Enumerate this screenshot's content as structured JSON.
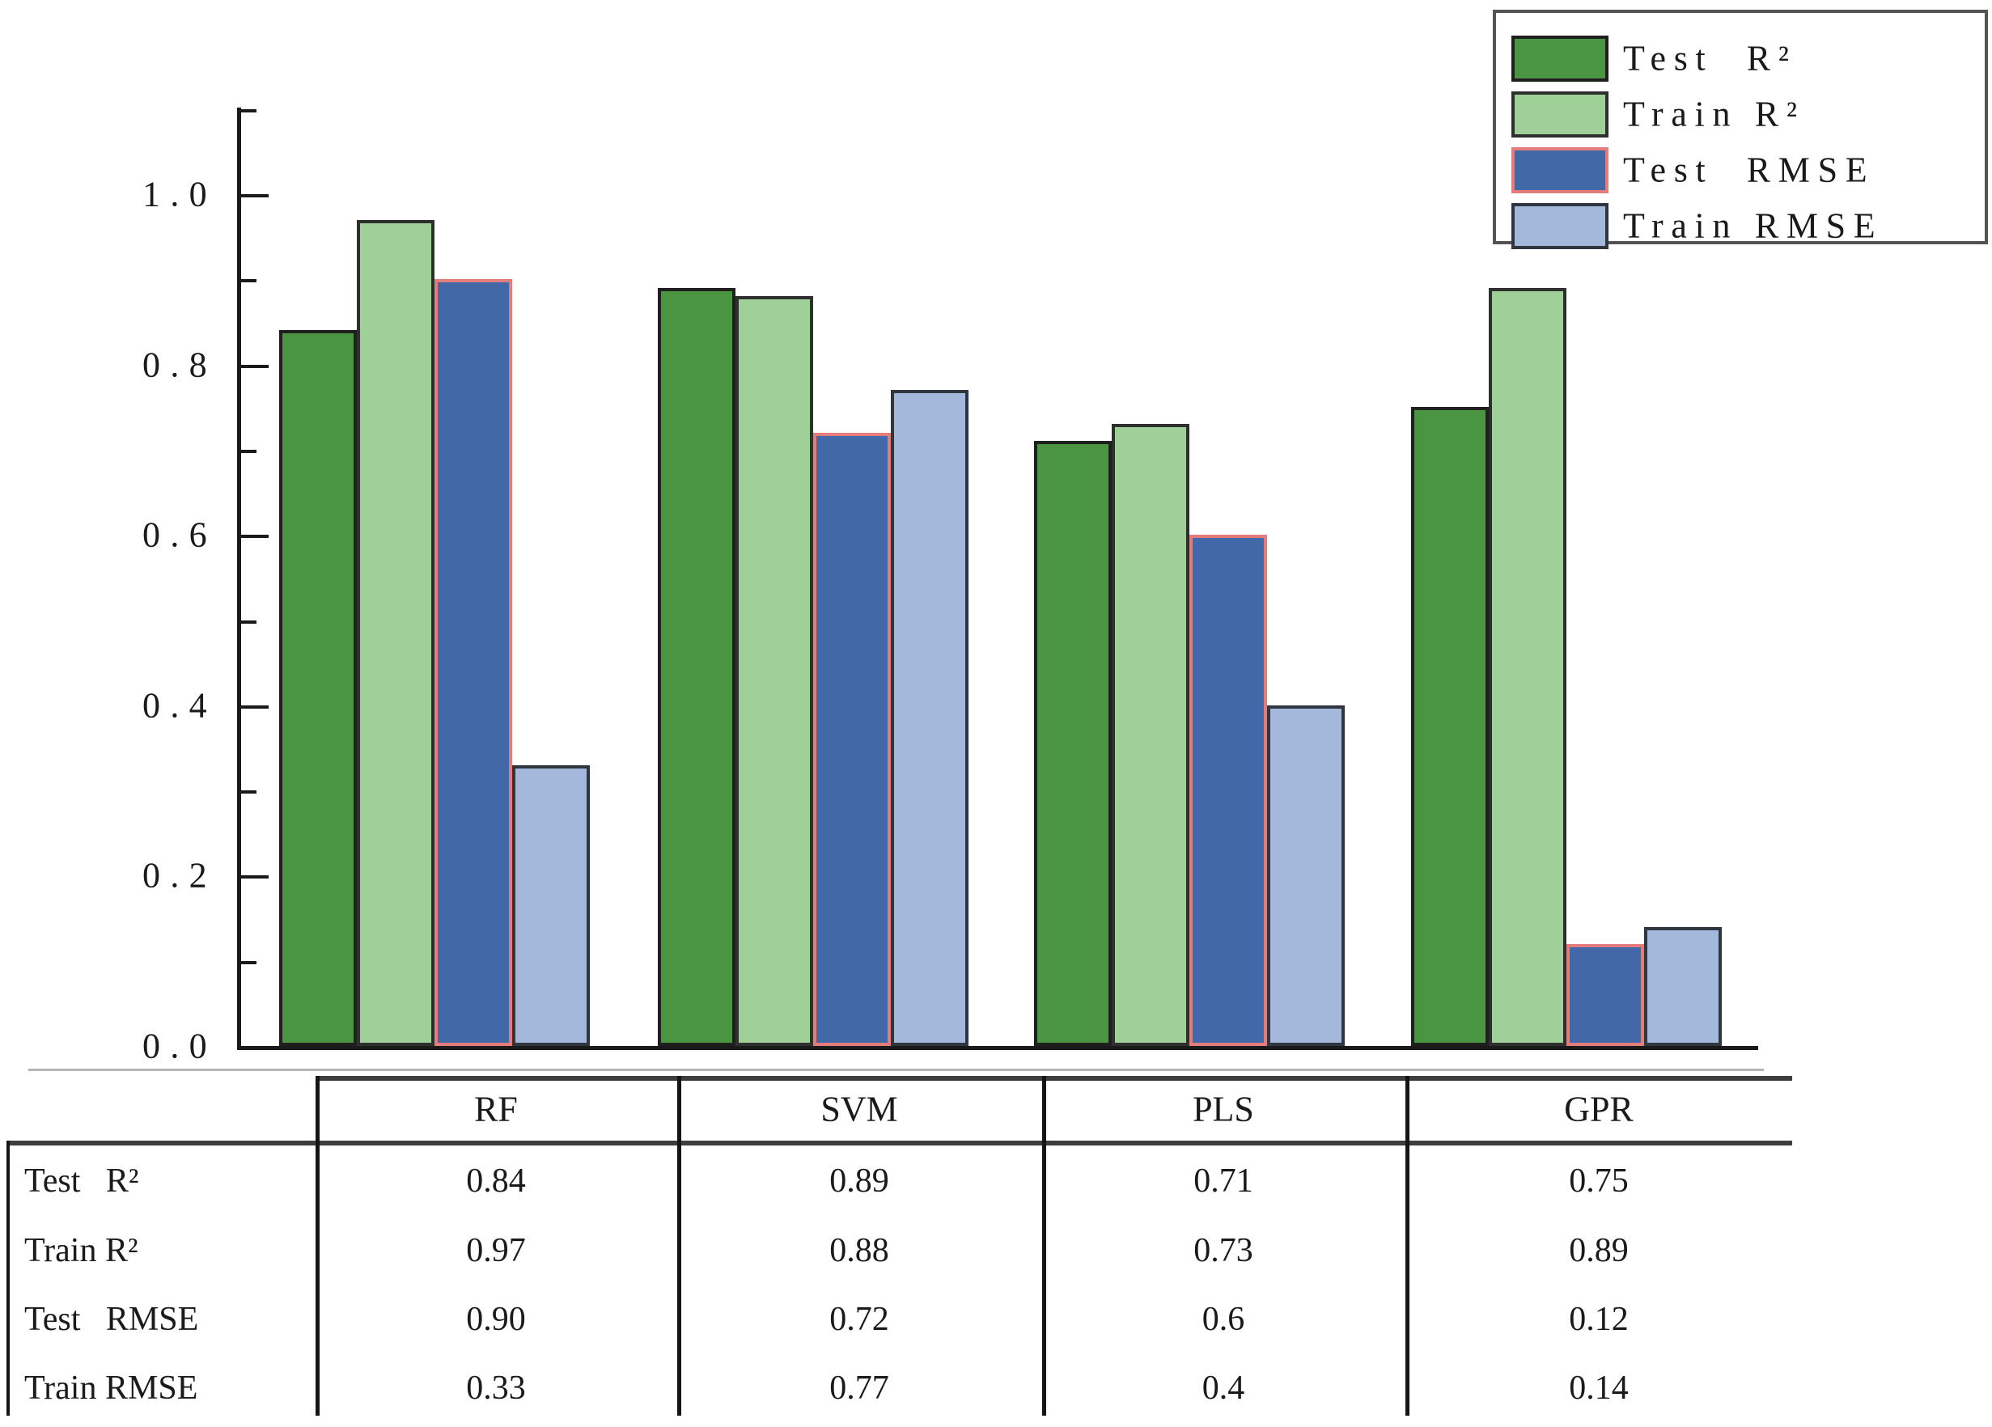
{
  "legend": {
    "items": [
      {
        "label": "Test  R²",
        "color": "#4a9542",
        "border": "#1f1f1f"
      },
      {
        "label": "Train R²",
        "color": "#9fd097",
        "border": "#2f2f2f"
      },
      {
        "label": "Test  RMSE",
        "color": "#4268a8",
        "border": "#e57c7c"
      },
      {
        "label": "Train RMSE",
        "color": "#a4b8dc",
        "border": "#2f3640"
      }
    ]
  },
  "chart_data": {
    "type": "bar",
    "categories": [
      "RF",
      "SVM",
      "PLS",
      "GPR"
    ],
    "series": [
      {
        "name": "Test R²",
        "color": "#4a9542",
        "border": "#1f1f1f",
        "values": [
          0.84,
          0.89,
          0.71,
          0.75
        ]
      },
      {
        "name": "Train R²",
        "color": "#9fd097",
        "border": "#2f2f2f",
        "values": [
          0.97,
          0.88,
          0.73,
          0.89
        ]
      },
      {
        "name": "Test RMSE",
        "color": "#4268a8",
        "border": "#e57c7c",
        "values": [
          0.9,
          0.72,
          0.6,
          0.12
        ]
      },
      {
        "name": "Train RMSE",
        "color": "#a4b8dc",
        "border": "#2f3640",
        "values": [
          0.33,
          0.77,
          0.4,
          0.14
        ]
      }
    ],
    "title": "",
    "xlabel": "",
    "ylabel": "",
    "ylim": [
      0,
      1.1
    ],
    "yticks_major": [
      0.0,
      0.2,
      0.4,
      0.6,
      0.8,
      1.0
    ],
    "ytick_labels": [
      "0.0",
      "0.2",
      "0.4",
      "0.6",
      "0.8",
      "1.0"
    ],
    "yticks_minor": [
      0.1,
      0.3,
      0.5,
      0.7,
      0.9,
      1.1
    ],
    "grid": false,
    "legend_position": "top-right"
  },
  "table": {
    "columns": [
      "RF",
      "SVM",
      "PLS",
      "GPR"
    ],
    "rows": [
      {
        "label": "Test   R²",
        "values": [
          "0.84",
          "0.89",
          "0.71",
          "0.75"
        ]
      },
      {
        "label": "Train R²",
        "values": [
          "0.97",
          "0.88",
          "0.73",
          "0.89"
        ]
      },
      {
        "label": "Test   RMSE",
        "values": [
          "0.90",
          "0.72",
          "0.6",
          "0.12"
        ]
      },
      {
        "label": "Train RMSE",
        "values": [
          "0.33",
          "0.77",
          "0.4",
          "0.14"
        ]
      }
    ]
  }
}
